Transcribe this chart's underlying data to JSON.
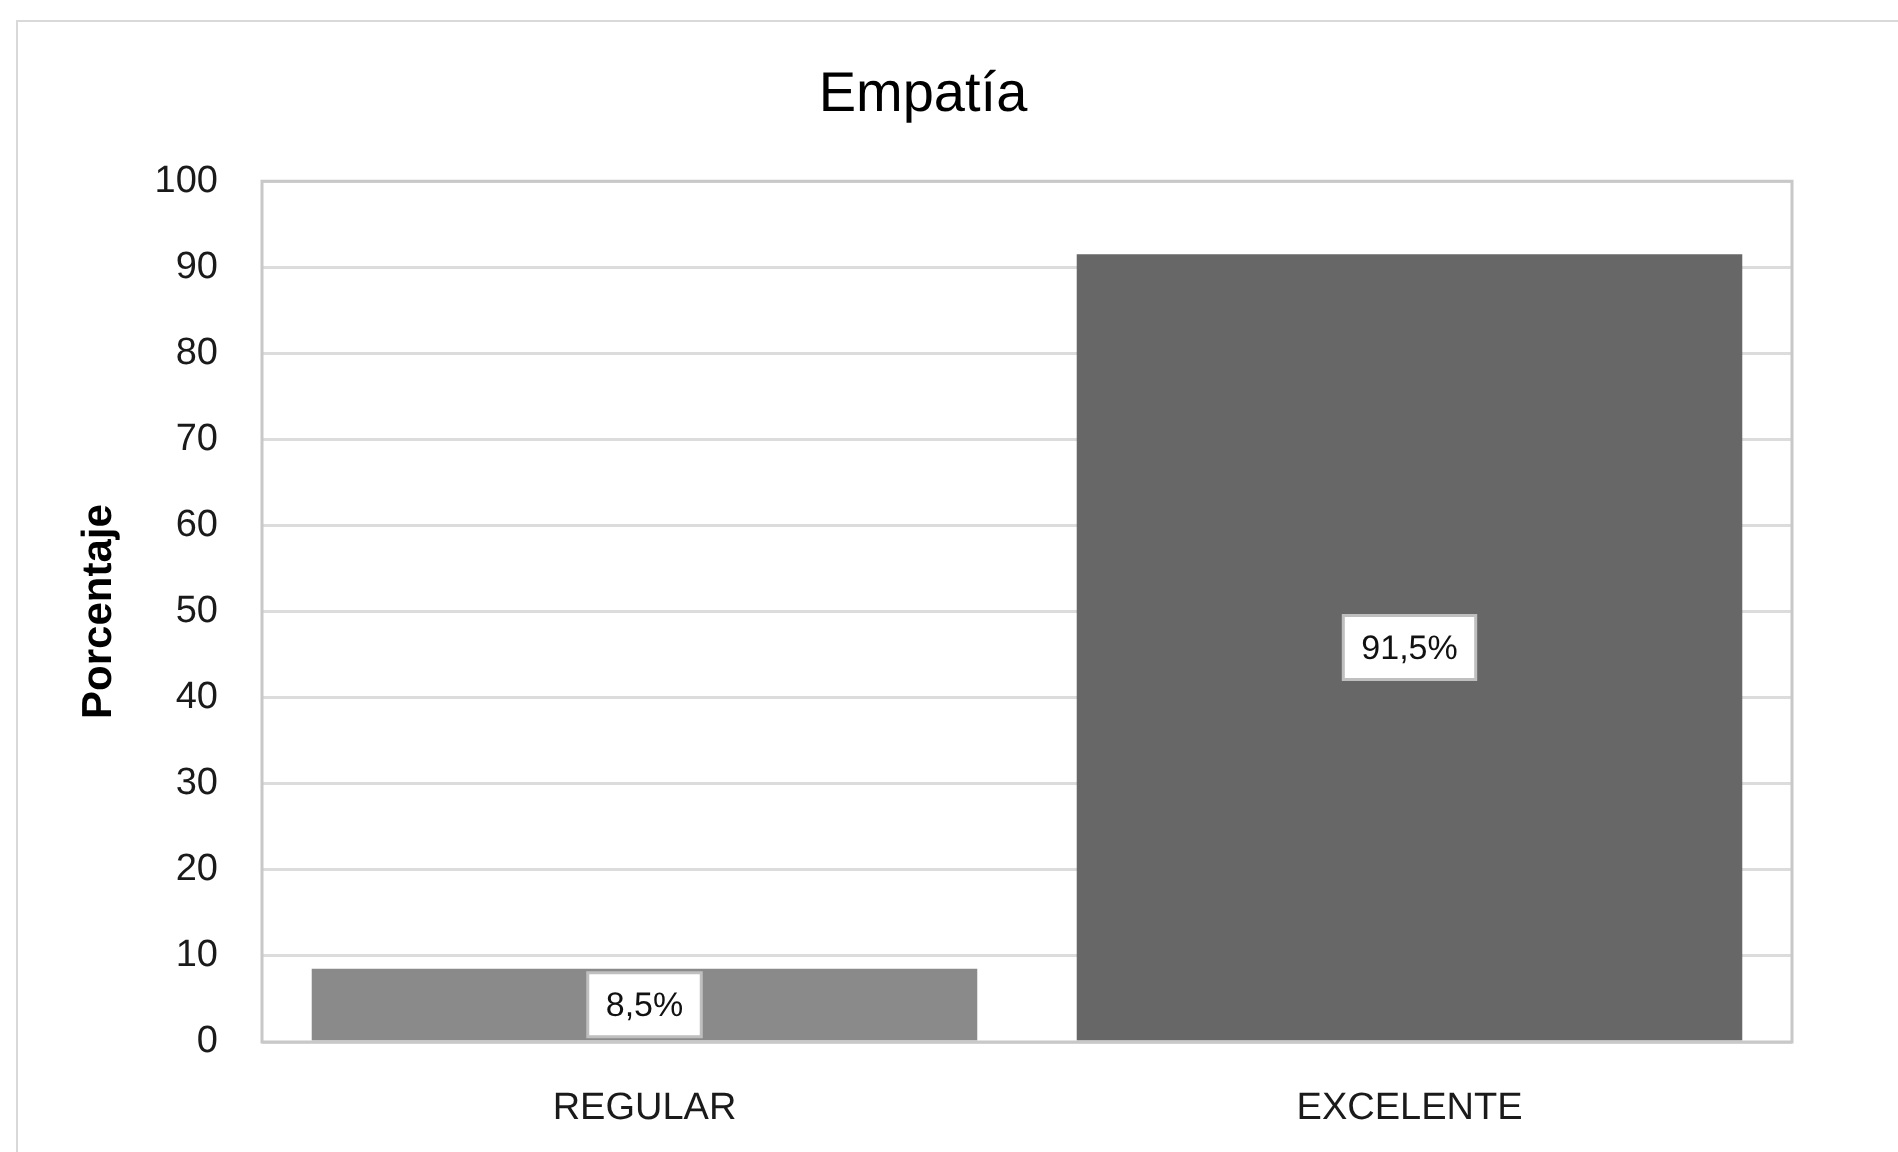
{
  "chart_data": {
    "type": "bar",
    "title": "Empatía",
    "ylabel": "Porcentaje",
    "categories": [
      "REGULAR",
      "EXCELENTE"
    ],
    "values": [
      8.5,
      91.5
    ],
    "colors": [
      "#8a8a8a",
      "#676767"
    ],
    "value_labels": [
      "8,5%",
      "91,5%"
    ],
    "ylim": [
      0,
      100
    ],
    "yticks": [
      0,
      10,
      20,
      30,
      40,
      50,
      60,
      70,
      80,
      90,
      100
    ],
    "grid": "y"
  }
}
